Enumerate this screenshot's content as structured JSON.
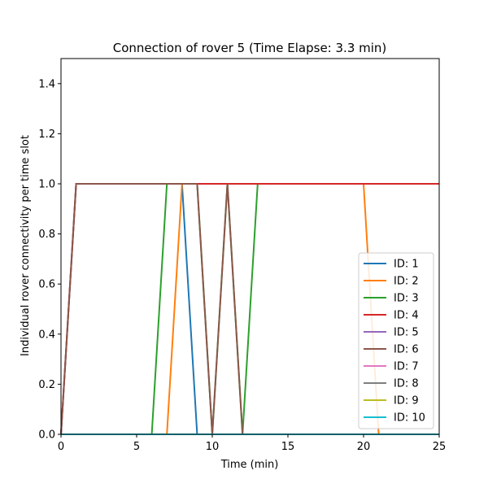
{
  "chart_data": {
    "type": "line",
    "title": "Connection of rover 5 (Time Elapse: 3.3 min)",
    "xlabel": "Time (min)",
    "ylabel": "Individual rover connectivity per time slot",
    "xlim": [
      0,
      25
    ],
    "ylim": [
      0,
      1.5
    ],
    "xticks": [
      0,
      5,
      10,
      15,
      20,
      25
    ],
    "yticks": [
      0.0,
      0.2,
      0.4,
      0.6,
      0.8,
      1.0,
      1.2,
      1.4
    ],
    "xtick_labels": [
      "0",
      "5",
      "10",
      "15",
      "20",
      "25"
    ],
    "ytick_labels": [
      "0.0",
      "0.2",
      "0.4",
      "0.6",
      "0.8",
      "1.0",
      "1.2",
      "1.4"
    ],
    "grid": false,
    "legend_position": "lower-right",
    "series": [
      {
        "name": "ID: 1",
        "color": "#1f77b4",
        "x": [
          0,
          1,
          8,
          9,
          25
        ],
        "y": [
          0,
          1,
          1,
          0,
          0
        ]
      },
      {
        "name": "ID: 2",
        "color": "#ff7f0e",
        "x": [
          0,
          7,
          8,
          20,
          21,
          25
        ],
        "y": [
          0,
          0,
          1,
          1,
          0,
          0
        ]
      },
      {
        "name": "ID: 3",
        "color": "#2ca02c",
        "x": [
          0,
          6,
          7,
          9,
          10,
          11,
          12,
          13,
          25
        ],
        "y": [
          0,
          0,
          1,
          1,
          0,
          1,
          0,
          1,
          1
        ]
      },
      {
        "name": "ID: 4",
        "color": "#d62728",
        "x": [
          0,
          1,
          25
        ],
        "y": [
          0,
          1,
          1
        ]
      },
      {
        "name": "ID: 5",
        "color": "#9467bd",
        "x": [
          0,
          25
        ],
        "y": [
          0,
          0
        ]
      },
      {
        "name": "ID: 6",
        "color": "#8c564b",
        "x": [
          0,
          1,
          9,
          10,
          11,
          12
        ],
        "y": [
          0,
          1,
          1,
          0,
          1,
          0
        ]
      },
      {
        "name": "ID: 7",
        "color": "#e377c2",
        "x": [
          0,
          25
        ],
        "y": [
          0,
          0
        ]
      },
      {
        "name": "ID: 8",
        "color": "#7f7f7f",
        "x": [
          0,
          25
        ],
        "y": [
          0,
          0
        ]
      },
      {
        "name": "ID: 9",
        "color": "#bcbd22",
        "x": [
          0,
          25
        ],
        "y": [
          0,
          0
        ]
      },
      {
        "name": "ID: 10",
        "color": "#17becf",
        "x": [
          0,
          25
        ],
        "y": [
          0,
          0
        ]
      }
    ]
  }
}
